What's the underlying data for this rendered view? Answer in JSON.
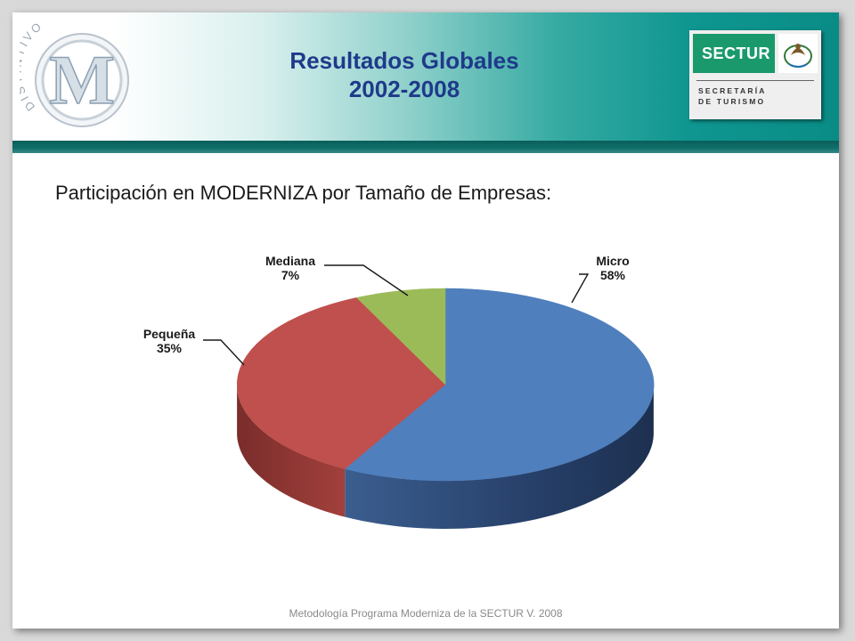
{
  "header": {
    "title_line1": "Resultados Globales",
    "title_line2": "2002-2008",
    "logo_left_text": "DISTINTIVO",
    "logo_left_letter": "M",
    "logo_right_badge": "SECTUR",
    "logo_right_line1": "SECRETARÍA",
    "logo_right_line2": "DE TURISMO"
  },
  "subtitle": "Participación en MODERNIZA por Tamaño de Empresas:",
  "footer": "Metodología Programa Moderniza de la SECTUR V. 2008",
  "colors": {
    "title": "#1f3a8a",
    "micro": "#4f7fbd",
    "pequena": "#c0504d",
    "mediana": "#9bbb59"
  },
  "chart_data": {
    "type": "pie",
    "style": "3d",
    "categories": [
      "Micro",
      "Pequeña",
      "Mediana"
    ],
    "values": [
      58,
      35,
      7
    ],
    "labels": [
      "58%",
      "35%",
      "7%"
    ]
  }
}
